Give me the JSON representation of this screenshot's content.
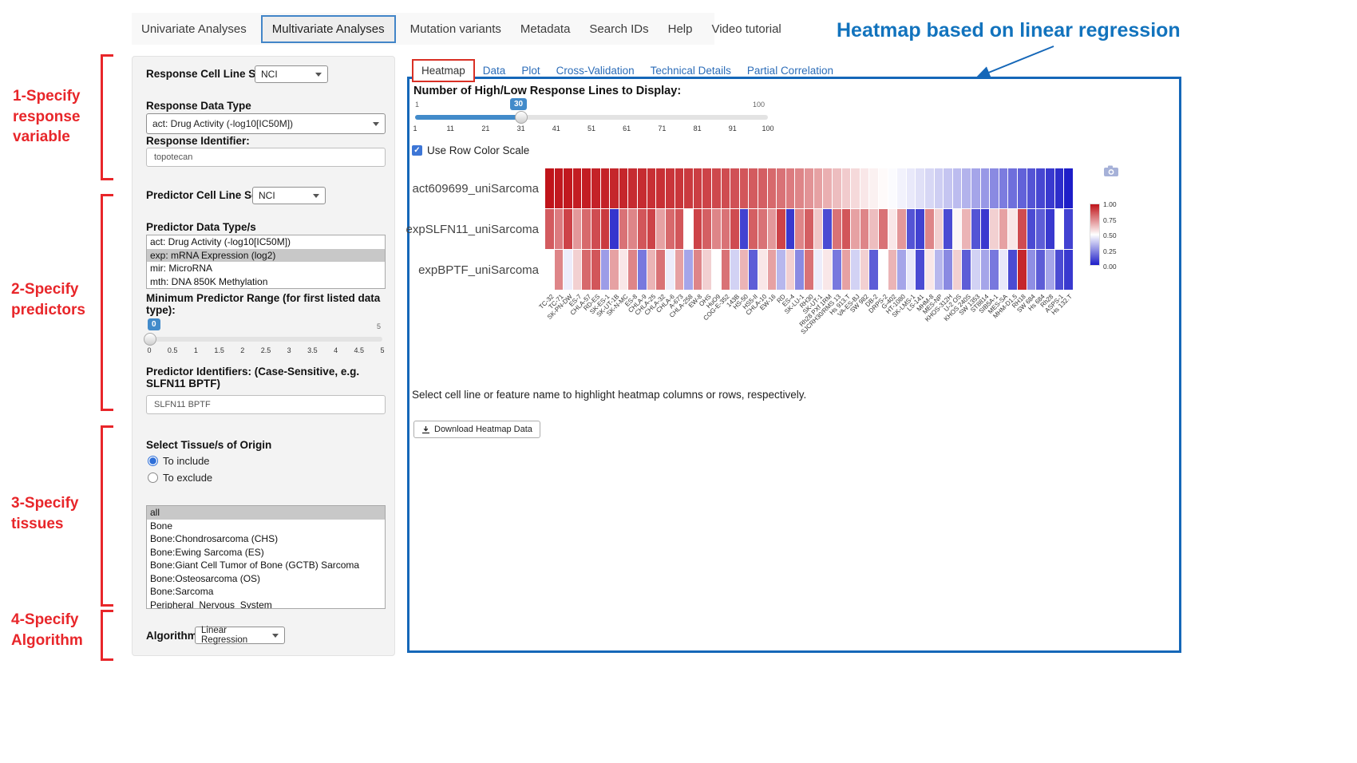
{
  "colors": {
    "accent_blue": "#1567b8",
    "annotation_red": "#e8262a",
    "link_blue": "#2b6cb8",
    "slider_blue": "#428bca"
  },
  "nav": {
    "items": [
      {
        "label": "Univariate Analyses",
        "active": false
      },
      {
        "label": "Multivariate Analyses",
        "active": true
      },
      {
        "label": "Mutation variants",
        "active": false
      },
      {
        "label": "Metadata",
        "active": false
      },
      {
        "label": "Search IDs",
        "active": false
      },
      {
        "label": "Help",
        "active": false
      },
      {
        "label": "Video tutorial",
        "active": false
      }
    ]
  },
  "annotations": {
    "heading": "Heatmap based on linear regression",
    "steps": [
      "1-Specify\nresponse\nvariable",
      "2-Specify\npredictors",
      "3-Specify\ntissues",
      "4-Specify\nAlgorithm"
    ]
  },
  "sidebar": {
    "response_cell_line_set_label": "Response Cell Line Set",
    "response_cell_line_set_value": "NCI",
    "response_data_type_label": "Response Data Type",
    "response_data_type_value": "act: Drug Activity (-log10[IC50M])",
    "response_identifier_label": "Response Identifier:",
    "response_identifier_value": "topotecan",
    "predictor_cell_line_set_label": "Predictor Cell Line Set",
    "predictor_cell_line_set_value": "NCI",
    "predictor_data_types_label": "Predictor Data Type/s",
    "predictor_data_types_options": [
      "act: Drug Activity (-log10[IC50M])",
      "exp: mRNA Expression (log2)",
      "mir: MicroRNA",
      "mth: DNA 850K Methylation"
    ],
    "predictor_data_types_selected_index": 1,
    "min_predictor_range_label": "Minimum Predictor Range (for first listed data type):",
    "min_predictor_range_value": "0",
    "min_predictor_range_max": "5",
    "min_predictor_range_ticks": [
      "0",
      "0.5",
      "1",
      "1.5",
      "2",
      "2.5",
      "3",
      "3.5",
      "4",
      "4.5",
      "5"
    ],
    "predictor_identifiers_label": "Predictor Identifiers: (Case-Sensitive, e.g. SLFN11 BPTF)",
    "predictor_identifiers_value": "SLFN11 BPTF",
    "tissue_label": "Select Tissue/s of Origin",
    "tissue_include_label": "To include",
    "tissue_exclude_label": "To exclude",
    "tissue_include_selected": true,
    "tissue_options": [
      "all",
      "Bone",
      "Bone:Chondrosarcoma (CHS)",
      "Bone:Ewing Sarcoma (ES)",
      "Bone:Giant Cell Tumor of Bone (GCTB) Sarcoma",
      "Bone:Osteosarcoma (OS)",
      "Bone:Sarcoma",
      "Peripheral_Nervous_System"
    ],
    "tissue_selected_index": 0,
    "algorithm_label": "Algorithm",
    "algorithm_value": "Linear Regression"
  },
  "panel": {
    "tabs": [
      "Heatmap",
      "Data",
      "Plot",
      "Cross-Validation",
      "Technical Details",
      "Partial Correlation"
    ],
    "active_tab_index": 0,
    "slider_label": "Number of High/Low Response Lines to Display:",
    "slider_min": "1",
    "slider_max": "100",
    "slider_value": "30",
    "slider_ticks": [
      "1",
      "11",
      "21",
      "31",
      "41",
      "51",
      "61",
      "71",
      "81",
      "91",
      "100"
    ],
    "row_color_scale_label": "Use Row Color Scale",
    "note": "Select cell line or feature name to highlight heatmap columns or rows, respectively.",
    "download_button_label": "Download Heatmap Data"
  },
  "chart_data": {
    "type": "heatmap",
    "title": "",
    "xlabel": "cell lines",
    "ylabel": "features",
    "legend_position": "right",
    "colorscale": {
      "min": 0.0,
      "max": 1.0,
      "low_color": "#1e1ec8",
      "mid_color": "#ffffff",
      "high_color": "#c0141a"
    },
    "legend_ticks": [
      "1.00",
      "0.75",
      "0.50",
      "0.25",
      "0.00"
    ],
    "categories": [
      "TC-32",
      "TC-71",
      "SK-PN-DW",
      "ES-7",
      "CHLA-57",
      "RD-ES",
      "SK-ES-1",
      "SK-UT-1B",
      "SK-N-MC",
      "ES-8",
      "CHLA-9",
      "CHLA-25",
      "CHLA-32",
      "CHLA-6",
      "A-673",
      "CHLA-258",
      "EW-8",
      "OHS",
      "HuO9",
      "COG-E-352",
      "143B",
      "HS-50",
      "HS5-II",
      "CHLA-10",
      "EW-16",
      "RD",
      "ES-4",
      "SK-LU-1",
      "RH30",
      "SK-UT-1",
      "Rh28 PXf 1RM",
      "SJCRH30/RMS 13",
      "Hs 913.T",
      "VA-ES-BJ",
      "SW 982",
      "DB-2",
      "DRPS-2",
      "G-402",
      "HT-1080",
      "SK-LMS-1",
      "LS-141",
      "MHM-8",
      "MES-NP",
      "KHOS-312H",
      "U-2 OS",
      "KHOS 240S",
      "SW 1353",
      "ST8814",
      "SIB5A-1",
      "MES-SA",
      "MHM-D1.5",
      "RH18",
      "SW 684",
      "Hs 684",
      "Rh28",
      "ASPS-1",
      "Hs 132.T"
    ],
    "series": [
      {
        "name": "act609699_uniSarcoma",
        "values": [
          1.0,
          0.99,
          0.99,
          0.98,
          0.98,
          0.97,
          0.97,
          0.96,
          0.96,
          0.95,
          0.95,
          0.94,
          0.94,
          0.93,
          0.93,
          0.92,
          0.91,
          0.9,
          0.89,
          0.88,
          0.87,
          0.86,
          0.85,
          0.84,
          0.82,
          0.8,
          0.78,
          0.76,
          0.73,
          0.7,
          0.67,
          0.64,
          0.61,
          0.58,
          0.55,
          0.53,
          0.51,
          0.49,
          0.47,
          0.45,
          0.43,
          0.41,
          0.39,
          0.37,
          0.35,
          0.33,
          0.3,
          0.27,
          0.24,
          0.21,
          0.18,
          0.15,
          0.12,
          0.09,
          0.06,
          0.03,
          0.0
        ]
      },
      {
        "name": "expSLFN11_uniSarcoma",
        "values": [
          0.85,
          0.78,
          0.9,
          0.72,
          0.82,
          0.88,
          0.92,
          0.05,
          0.8,
          0.76,
          0.86,
          0.9,
          0.7,
          0.82,
          0.86,
          0.5,
          0.9,
          0.84,
          0.76,
          0.8,
          0.88,
          0.08,
          0.84,
          0.8,
          0.72,
          0.9,
          0.06,
          0.76,
          0.84,
          0.62,
          0.1,
          0.8,
          0.86,
          0.7,
          0.76,
          0.64,
          0.8,
          0.55,
          0.72,
          0.12,
          0.08,
          0.76,
          0.6,
          0.1,
          0.52,
          0.66,
          0.12,
          0.06,
          0.6,
          0.7,
          0.55,
          0.88,
          0.1,
          0.14,
          0.06,
          0.5,
          0.08
        ]
      },
      {
        "name": "expBPTF_uniSarcoma",
        "values": [
          0.5,
          0.76,
          0.46,
          0.6,
          0.82,
          0.86,
          0.28,
          0.7,
          0.55,
          0.76,
          0.2,
          0.66,
          0.8,
          0.46,
          0.7,
          0.3,
          0.76,
          0.6,
          0.5,
          0.8,
          0.4,
          0.66,
          0.14,
          0.55,
          0.7,
          0.34,
          0.6,
          0.24,
          0.8,
          0.46,
          0.55,
          0.2,
          0.7,
          0.4,
          0.6,
          0.14,
          0.5,
          0.66,
          0.3,
          0.45,
          0.1,
          0.55,
          0.34,
          0.24,
          0.6,
          0.14,
          0.4,
          0.3,
          0.2,
          0.45,
          0.1,
          0.96,
          0.25,
          0.14,
          0.3,
          0.1,
          0.06
        ]
      }
    ]
  }
}
